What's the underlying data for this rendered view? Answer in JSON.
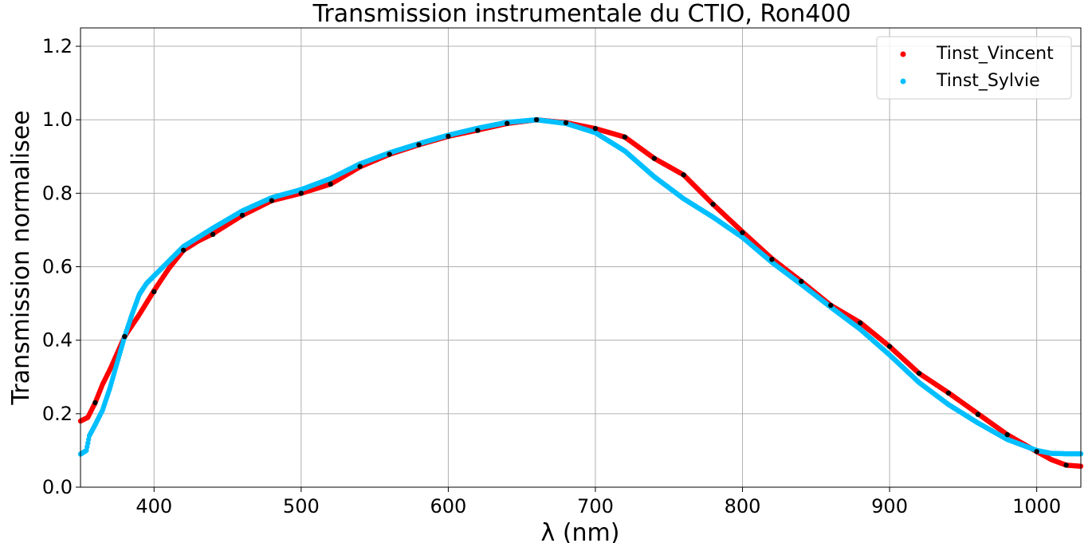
{
  "chart_data": {
    "type": "scatter",
    "title": "Transmission instrumentale du CTIO, Ron400",
    "xlabel": "λ (nm)",
    "ylabel": "Transmission normalisee",
    "xlim": [
      350,
      1030
    ],
    "ylim": [
      0.0,
      1.25
    ],
    "xticks": [
      400,
      500,
      600,
      700,
      800,
      900,
      1000
    ],
    "yticks": [
      0.0,
      0.2,
      0.4,
      0.6,
      0.8,
      1.0,
      1.2
    ],
    "xtick_labels": [
      "400",
      "500",
      "600",
      "700",
      "800",
      "900",
      "1000"
    ],
    "ytick_labels": [
      "0.0",
      "0.2",
      "0.4",
      "0.6",
      "0.8",
      "1.0",
      "1.2"
    ],
    "grid": true,
    "legend_position": "top-right",
    "series": [
      {
        "name": "Tinst_Vincent",
        "color": "#ff0000",
        "marker": "dense-points",
        "x": [
          350,
          355,
          360,
          365,
          370,
          380,
          390,
          400,
          410,
          420,
          430,
          440,
          460,
          480,
          500,
          520,
          540,
          560,
          580,
          600,
          620,
          640,
          660,
          680,
          700,
          720,
          740,
          760,
          780,
          800,
          820,
          840,
          860,
          880,
          900,
          920,
          940,
          960,
          980,
          1000,
          1010,
          1020,
          1030
        ],
        "y": [
          0.18,
          0.19,
          0.23,
          0.28,
          0.32,
          0.41,
          0.47,
          0.535,
          0.595,
          0.645,
          0.67,
          0.69,
          0.74,
          0.78,
          0.8,
          0.825,
          0.872,
          0.906,
          0.932,
          0.955,
          0.972,
          0.99,
          1.0,
          0.992,
          0.976,
          0.953,
          0.895,
          0.85,
          0.77,
          0.695,
          0.622,
          0.56,
          0.495,
          0.448,
          0.383,
          0.31,
          0.257,
          0.2,
          0.143,
          0.097,
          0.075,
          0.06,
          0.057
        ]
      },
      {
        "name": "Tinst_Sylvie",
        "color": "#00bfff",
        "marker": "dense-points",
        "x": [
          350,
          354,
          356,
          360,
          365,
          370,
          375,
          380,
          385,
          390,
          395,
          400,
          410,
          420,
          430,
          440,
          460,
          480,
          500,
          520,
          540,
          560,
          580,
          600,
          620,
          640,
          660,
          680,
          700,
          720,
          740,
          760,
          780,
          800,
          820,
          840,
          860,
          880,
          900,
          920,
          940,
          960,
          980,
          1000,
          1010,
          1020,
          1030
        ],
        "y": [
          0.09,
          0.1,
          0.14,
          0.17,
          0.21,
          0.27,
          0.34,
          0.41,
          0.47,
          0.525,
          0.555,
          0.575,
          0.615,
          0.655,
          0.68,
          0.705,
          0.752,
          0.788,
          0.81,
          0.84,
          0.88,
          0.91,
          0.935,
          0.958,
          0.977,
          0.993,
          1.0,
          0.99,
          0.965,
          0.915,
          0.845,
          0.785,
          0.735,
          0.68,
          0.612,
          0.552,
          0.49,
          0.43,
          0.36,
          0.285,
          0.225,
          0.175,
          0.13,
          0.1,
          0.092,
          0.091,
          0.091
        ]
      },
      {
        "marker": "black-dots",
        "color": "#000000",
        "x": [
          360,
          380,
          400,
          420,
          440,
          460,
          480,
          500,
          520,
          540,
          560,
          580,
          600,
          620,
          640,
          660,
          680,
          700,
          720,
          740,
          760,
          780,
          800,
          820,
          840,
          860,
          880,
          900,
          920,
          940,
          960,
          980,
          1000,
          1020
        ],
        "y": [
          0.23,
          0.41,
          0.532,
          0.645,
          0.688,
          0.74,
          0.78,
          0.8,
          0.825,
          0.873,
          0.906,
          0.932,
          0.955,
          0.971,
          0.99,
          1.0,
          0.992,
          0.976,
          0.953,
          0.895,
          0.85,
          0.77,
          0.693,
          0.62,
          0.56,
          0.495,
          0.447,
          0.383,
          0.31,
          0.256,
          0.198,
          0.143,
          0.097,
          0.06
        ]
      }
    ]
  }
}
